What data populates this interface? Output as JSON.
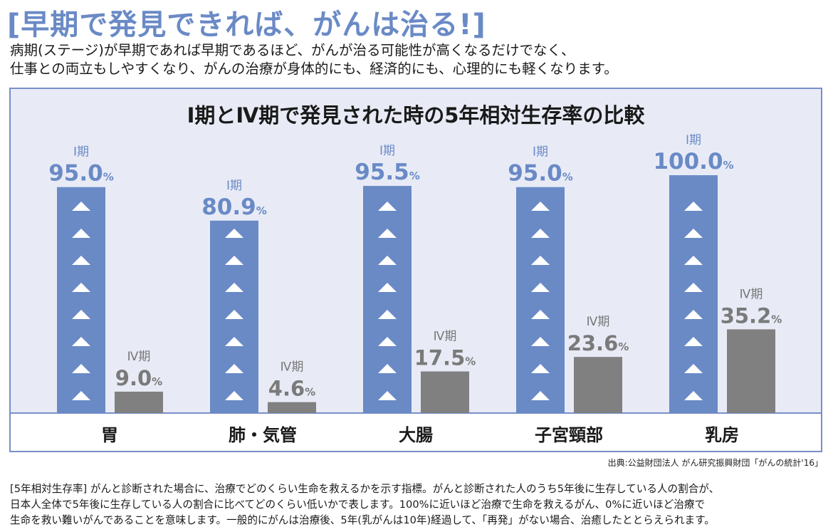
{
  "headline": "[早期で発見できれば、がんは治る!]",
  "intro": [
    "病期(ステージ)が早期であれば早期であるほど、がんが治る可能性が高くなるだけでなく、",
    "仕事との両立もしやすくなり、がんの治療が身体的にも、経済的にも、心理的にも軽くなります。"
  ],
  "chart_data": {
    "type": "bar",
    "title": "I期とⅣ期で発見された時の5年相対生存率の比較",
    "categories": [
      "胃",
      "肺・気管",
      "大腸",
      "子宮頸部",
      "乳房"
    ],
    "series": [
      {
        "name": "I期",
        "values": [
          95.0,
          80.9,
          95.5,
          95.0,
          100.0
        ],
        "value_labels": [
          "95.0",
          "80.9",
          "95.5",
          "95.0",
          "100.0"
        ],
        "color": "#6a8ac6"
      },
      {
        "name": "Ⅳ期",
        "values": [
          9.0,
          4.6,
          17.5,
          23.6,
          35.2
        ],
        "value_labels": [
          "9.0",
          "4.6",
          "17.5",
          "23.6",
          "35.2"
        ],
        "color": "#808080"
      }
    ],
    "unit": "%",
    "ylim": [
      0,
      100
    ],
    "grid": false,
    "legend": "none",
    "background": "#e8ebf6"
  },
  "source": "出典:公益財団法人 がん研究振興財団「がんの統計'16」",
  "note": [
    "[5年相対生存率] がんと診断された場合に、治療でどのくらい生命を救えるかを示す指標。がんと診断された人のうち5年後に生存している人の割合が、",
    "日本人全体で5年後に生存している人の割合に比べてどのくらい低いかで表します。100%に近いほど治療で生命を救えるがん、0%に近いほど治療で",
    "生命を救い難いがんであることを意味します。一般的にがんは治療後、5年(乳がんは10年)経過して、「再発」がない場合、治癒したととらえられます。"
  ]
}
